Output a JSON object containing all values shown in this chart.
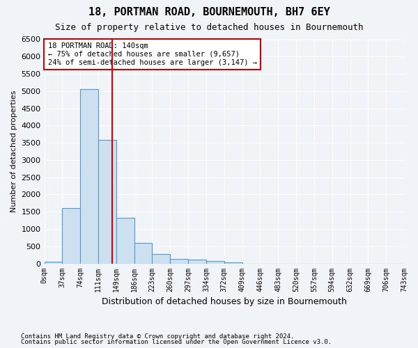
{
  "title": "18, PORTMAN ROAD, BOURNEMOUTH, BH7 6EY",
  "subtitle": "Size of property relative to detached houses in Bournemouth",
  "xlabel": "Distribution of detached houses by size in Bournemouth",
  "ylabel": "Number of detached properties",
  "footnote1": "Contains HM Land Registry data © Crown copyright and database right 2024.",
  "footnote2": "Contains public sector information licensed under the Open Government Licence v3.0.",
  "bin_labels": [
    "0sqm",
    "37sqm",
    "74sqm",
    "111sqm",
    "149sqm",
    "186sqm",
    "223sqm",
    "260sqm",
    "297sqm",
    "334sqm",
    "372sqm",
    "409sqm",
    "446sqm",
    "483sqm",
    "520sqm",
    "557sqm",
    "594sqm",
    "632sqm",
    "669sqm",
    "706sqm",
    "743sqm"
  ],
  "bar_values": [
    60,
    1600,
    5050,
    3580,
    1320,
    600,
    270,
    130,
    110,
    70,
    30,
    0,
    0,
    0,
    0,
    0,
    0,
    0,
    0,
    0
  ],
  "bar_color": "#cce0f0",
  "bar_edge_color": "#5599cc",
  "vline_pos": 3.78,
  "vline_color": "#cc0000",
  "ylim": [
    0,
    6500
  ],
  "yticks": [
    0,
    500,
    1000,
    1500,
    2000,
    2500,
    3000,
    3500,
    4000,
    4500,
    5000,
    5500,
    6000,
    6500
  ],
  "annotation_title": "18 PORTMAN ROAD: 140sqm",
  "annotation_line1": "← 75% of detached houses are smaller (9,657)",
  "annotation_line2": "24% of semi-detached houses are larger (3,147) →",
  "annotation_box_color": "#cc0000",
  "bg_color": "#f0f4f8",
  "grid_color": "#ffffff"
}
